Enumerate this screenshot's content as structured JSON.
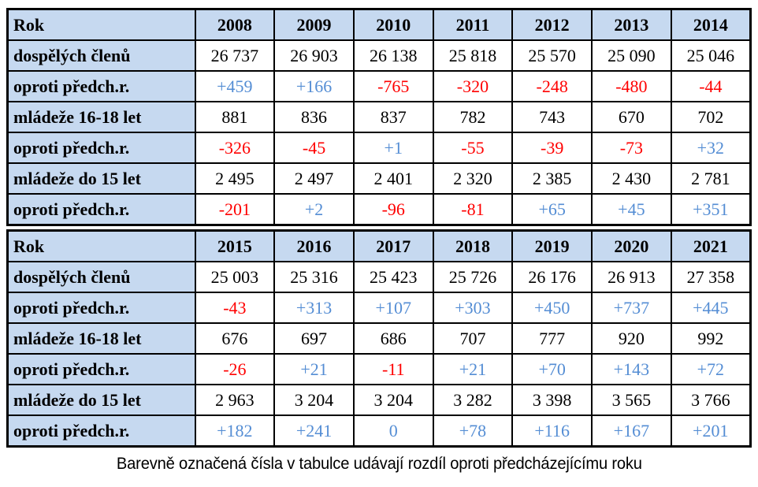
{
  "colors": {
    "page_bg": "#FFFFFF",
    "header_bg": "#C6D9F0",
    "positive": "#548DD4",
    "negative": "#FF0000",
    "border": "#000000",
    "text": "#000000"
  },
  "caption": "Barevně označená čísla v tabulce udávají rozdíl oproti předcházejícímu roku",
  "tables": [
    {
      "corner_label": "Rok",
      "years": [
        "2008",
        "2009",
        "2010",
        "2011",
        "2012",
        "2013",
        "2014"
      ],
      "rows": [
        {
          "label": "dospělých členů",
          "kind": "count",
          "values": [
            "26 737",
            "26 903",
            "26 138",
            "25 818",
            "25 570",
            "25 090",
            "25 046"
          ]
        },
        {
          "label": "oproti předch.r.",
          "kind": "diff",
          "values": [
            "+459",
            "+166",
            "-765",
            "-320",
            "-248",
            "-480",
            "-44"
          ]
        },
        {
          "label": "mládeže 16-18 let",
          "kind": "count",
          "values": [
            "881",
            "836",
            "837",
            "782",
            "743",
            "670",
            "702"
          ]
        },
        {
          "label": "oproti předch.r.",
          "kind": "diff",
          "values": [
            "-326",
            "-45",
            "+1",
            "-55",
            "-39",
            "-73",
            "+32"
          ]
        },
        {
          "label": "mládeže do 15 let",
          "kind": "count",
          "values": [
            "2 495",
            "2 497",
            "2 401",
            "2 320",
            "2 385",
            "2 430",
            "2 781"
          ]
        },
        {
          "label": "oproti předch.r.",
          "kind": "diff",
          "values": [
            "-201",
            "+2",
            "-96",
            "-81",
            "+65",
            "+45",
            "+351"
          ]
        }
      ]
    },
    {
      "corner_label": "Rok",
      "years": [
        "2015",
        "2016",
        "2017",
        "2018",
        "2019",
        "2020",
        "2021"
      ],
      "rows": [
        {
          "label": "dospělých členů",
          "kind": "count",
          "values": [
            "25 003",
            "25 316",
            "25 423",
            "25 726",
            "26 176",
            "26 913",
            "27 358"
          ]
        },
        {
          "label": "oproti předch.r.",
          "kind": "diff",
          "values": [
            "-43",
            "+313",
            "+107",
            "+303",
            "+450",
            "+737",
            "+445"
          ]
        },
        {
          "label": "mládeže 16-18 let",
          "kind": "count",
          "values": [
            "676",
            "697",
            "686",
            "707",
            "777",
            "920",
            "992"
          ]
        },
        {
          "label": "oproti předch.r.",
          "kind": "diff",
          "values": [
            "-26",
            "+21",
            "-11",
            "+21",
            "+70",
            "+143",
            "+72"
          ]
        },
        {
          "label": "mládeže do 15 let",
          "kind": "count",
          "values": [
            "2 963",
            "3 204",
            "3 204",
            "3 282",
            "3 398",
            "3 565",
            "3 766"
          ]
        },
        {
          "label": "oproti předch.r.",
          "kind": "diff",
          "values": [
            "+182",
            "+241",
            "0",
            "+78",
            "+116",
            "+167",
            "+201"
          ]
        }
      ]
    }
  ]
}
